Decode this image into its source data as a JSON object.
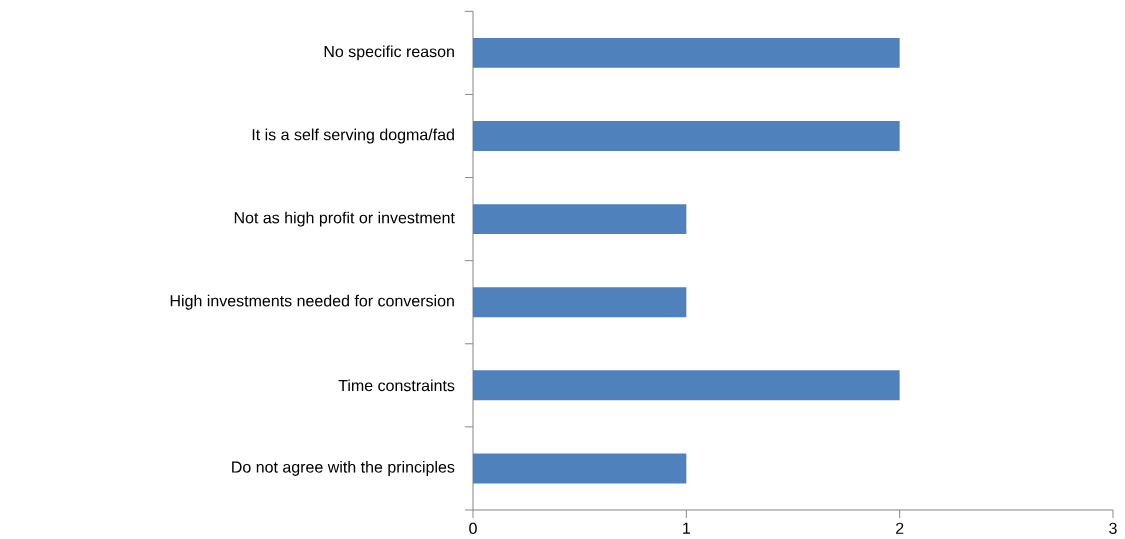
{
  "chart_data": {
    "type": "bar",
    "orientation": "horizontal",
    "categories": [
      "No specific reason",
      "It is a self serving dogma/fad",
      "Not as high profit or  investment",
      "High investments needed for conversion",
      "Time constraints",
      "Do  not agree with the principles"
    ],
    "values": [
      2,
      2,
      1,
      1,
      2,
      1
    ],
    "color": "#4f81bd",
    "xlim": [
      0,
      3
    ],
    "xticks": [
      0,
      1,
      2,
      3
    ]
  }
}
